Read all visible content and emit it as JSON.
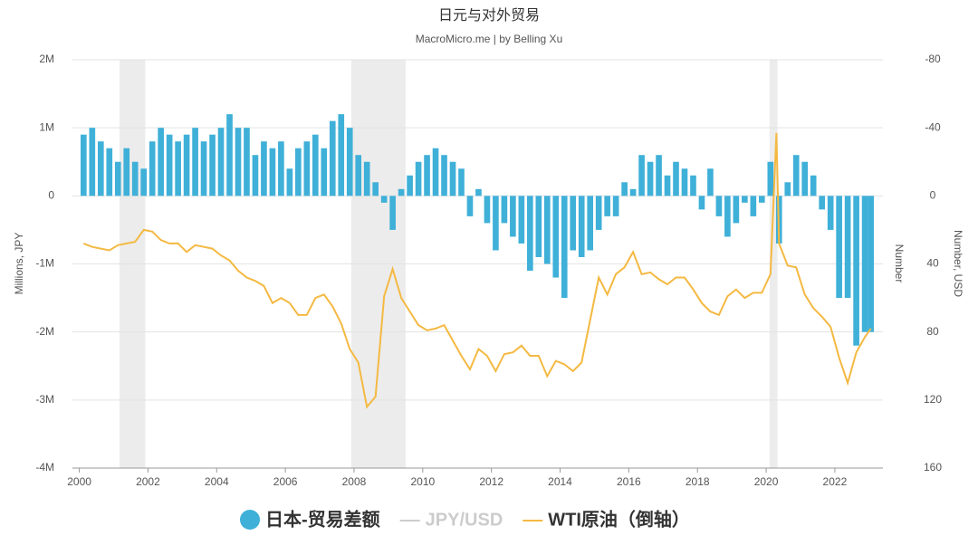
{
  "chart_data": {
    "type": "bar_line",
    "title": "日元与对外贸易",
    "subtitle": "MacroMicro.me | by Belling Xu",
    "ylabel": "Millions, JPY",
    "y2label": "Number",
    "y2label_outer": "Number, USD",
    "xlim": [
      1999.8,
      2023.4
    ],
    "xticks": [
      2000,
      2002,
      2004,
      2006,
      2008,
      2010,
      2012,
      2014,
      2016,
      2018,
      2020,
      2022
    ],
    "ylim": [
      -4000000,
      2000000
    ],
    "yticks": [
      {
        "value": 2000000,
        "label": "2M"
      },
      {
        "value": 1000000,
        "label": "1M"
      },
      0,
      {
        "value": -1000000,
        "label": "-1M"
      },
      {
        "value": -2000000,
        "label": "-2M"
      },
      {
        "value": -3000000,
        "label": "-3M"
      },
      {
        "value": -4000000,
        "label": "-4M"
      }
    ],
    "y2lim": [
      160,
      -80
    ],
    "y2ticks": [
      -80,
      -40,
      0,
      40,
      80,
      120,
      160
    ],
    "grid": true,
    "shaded": [
      [
        2001.17,
        2001.92
      ],
      [
        2007.92,
        2009.5
      ],
      [
        2020.1,
        2020.33
      ]
    ],
    "legend": "bottom",
    "series": [
      {
        "name": "日本-贸易差额",
        "type": "bar",
        "color": "#3fb0d8",
        "x": [
          2000.125,
          2000.375,
          2000.625,
          2000.875,
          2001.125,
          2001.375,
          2001.625,
          2001.875,
          2002.125,
          2002.375,
          2002.625,
          2002.875,
          2003.125,
          2003.375,
          2003.625,
          2003.875,
          2004.125,
          2004.375,
          2004.625,
          2004.875,
          2005.125,
          2005.375,
          2005.625,
          2005.875,
          2006.125,
          2006.375,
          2006.625,
          2006.875,
          2007.125,
          2007.375,
          2007.625,
          2007.875,
          2008.125,
          2008.375,
          2008.625,
          2008.875,
          2009.125,
          2009.375,
          2009.625,
          2009.875,
          2010.125,
          2010.375,
          2010.625,
          2010.875,
          2011.125,
          2011.375,
          2011.625,
          2011.875,
          2012.125,
          2012.375,
          2012.625,
          2012.875,
          2013.125,
          2013.375,
          2013.625,
          2013.875,
          2014.125,
          2014.375,
          2014.625,
          2014.875,
          2015.125,
          2015.375,
          2015.625,
          2015.875,
          2016.125,
          2016.375,
          2016.625,
          2016.875,
          2017.125,
          2017.375,
          2017.625,
          2017.875,
          2018.125,
          2018.375,
          2018.625,
          2018.875,
          2019.125,
          2019.375,
          2019.625,
          2019.875,
          2020.125,
          2020.375,
          2020.625,
          2020.875,
          2021.125,
          2021.375,
          2021.625,
          2021.875,
          2022.125,
          2022.375,
          2022.625,
          2022.875,
          2023.05
        ],
        "values": [
          900000,
          1000000,
          800000,
          700000,
          500000,
          700000,
          500000,
          400000,
          800000,
          1000000,
          900000,
          800000,
          900000,
          1000000,
          800000,
          900000,
          1000000,
          1200000,
          1000000,
          1000000,
          600000,
          800000,
          700000,
          800000,
          400000,
          700000,
          800000,
          900000,
          700000,
          1100000,
          1200000,
          1000000,
          600000,
          500000,
          200000,
          -100000,
          -500000,
          100000,
          300000,
          500000,
          600000,
          700000,
          600000,
          500000,
          400000,
          -300000,
          100000,
          -400000,
          -800000,
          -400000,
          -600000,
          -700000,
          -1100000,
          -900000,
          -1000000,
          -1200000,
          -1500000,
          -800000,
          -900000,
          -800000,
          -500000,
          -300000,
          -300000,
          200000,
          100000,
          600000,
          500000,
          600000,
          300000,
          500000,
          400000,
          300000,
          -200000,
          400000,
          -300000,
          -600000,
          -400000,
          -100000,
          -300000,
          -100000,
          500000,
          -700000,
          200000,
          600000,
          500000,
          300000,
          -200000,
          -500000,
          -1500000,
          -1500000,
          -2200000,
          -2000000,
          -2000000
        ]
      },
      {
        "name": "JPY/USD",
        "type": "line",
        "color": "#cccccc",
        "hidden": true
      },
      {
        "name": "WTI原油（倒轴）",
        "type": "line",
        "axis": "y2",
        "color": "#f4b942",
        "x": [
          2000.125,
          2000.375,
          2000.625,
          2000.875,
          2001.125,
          2001.375,
          2001.625,
          2001.875,
          2002.125,
          2002.375,
          2002.625,
          2002.875,
          2003.125,
          2003.375,
          2003.625,
          2003.875,
          2004.125,
          2004.375,
          2004.625,
          2004.875,
          2005.125,
          2005.375,
          2005.625,
          2005.875,
          2006.125,
          2006.375,
          2006.625,
          2006.875,
          2007.125,
          2007.375,
          2007.625,
          2007.875,
          2008.125,
          2008.375,
          2008.625,
          2008.875,
          2009.125,
          2009.375,
          2009.625,
          2009.875,
          2010.125,
          2010.375,
          2010.625,
          2010.875,
          2011.125,
          2011.375,
          2011.625,
          2011.875,
          2012.125,
          2012.375,
          2012.625,
          2012.875,
          2013.125,
          2013.375,
          2013.625,
          2013.875,
          2014.125,
          2014.375,
          2014.625,
          2014.875,
          2015.125,
          2015.375,
          2015.625,
          2015.875,
          2016.125,
          2016.375,
          2016.625,
          2016.875,
          2017.125,
          2017.375,
          2017.625,
          2017.875,
          2018.125,
          2018.375,
          2018.625,
          2018.875,
          2019.125,
          2019.375,
          2019.625,
          2019.875,
          2020.125,
          2020.3,
          2020.375,
          2020.625,
          2020.875,
          2021.125,
          2021.375,
          2021.625,
          2021.875,
          2022.125,
          2022.375,
          2022.625,
          2022.875,
          2023.05
        ],
        "values": [
          28,
          30,
          31,
          32,
          29,
          28,
          27,
          20,
          21,
          26,
          28,
          28,
          33,
          29,
          30,
          31,
          35,
          38,
          44,
          48,
          50,
          53,
          63,
          60,
          63,
          70,
          70,
          60,
          58,
          65,
          75,
          90,
          98,
          124,
          118,
          59,
          43,
          60,
          68,
          76,
          79,
          78,
          76,
          85,
          94,
          102,
          90,
          94,
          103,
          93,
          92,
          88,
          94,
          94,
          106,
          97,
          99,
          103,
          98,
          73,
          48,
          58,
          46,
          42,
          33,
          46,
          45,
          49,
          52,
          48,
          48,
          55,
          63,
          68,
          70,
          59,
          55,
          60,
          57,
          57,
          46,
          -37,
          28,
          41,
          42,
          58,
          66,
          71,
          77,
          95,
          110,
          92,
          83,
          78
        ]
      }
    ]
  }
}
